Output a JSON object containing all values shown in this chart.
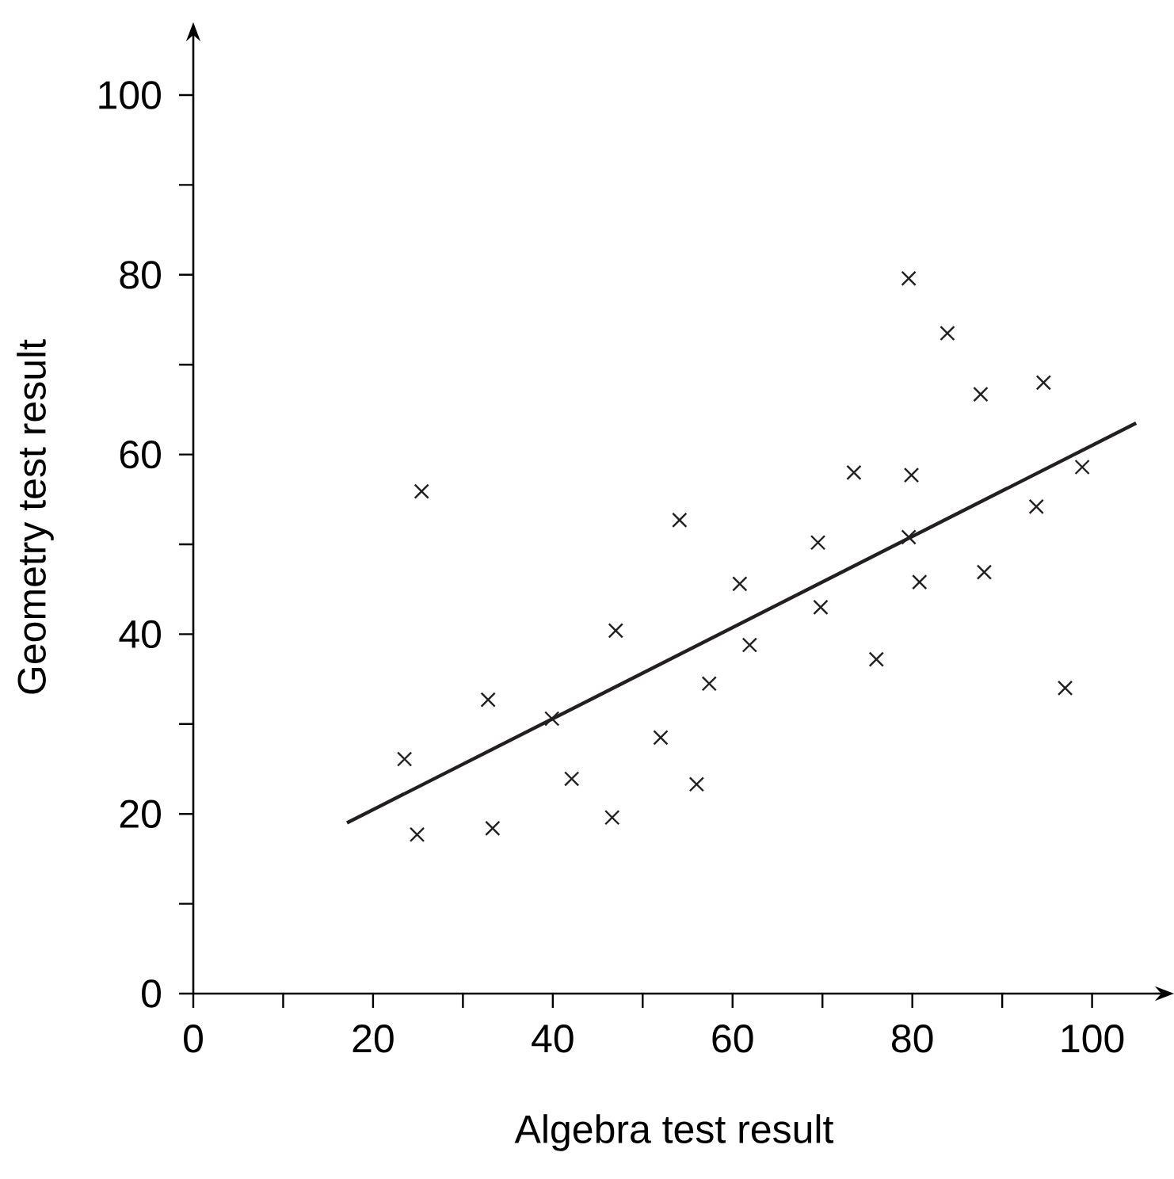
{
  "chart_data": {
    "type": "scatter",
    "xlabel": "Algebra test result",
    "ylabel": "Geometry test result",
    "xlim": [
      0,
      107
    ],
    "ylim": [
      0,
      106
    ],
    "xticks": [
      0,
      {
        "value": 10,
        "label": null
      },
      20,
      {
        "value": 30,
        "label": null
      },
      40,
      {
        "value": 50,
        "label": null
      },
      60,
      {
        "value": 70,
        "label": null
      },
      80,
      {
        "value": 90,
        "label": null
      },
      100
    ],
    "yticks": [
      0,
      {
        "value": 10,
        "label": null
      },
      20,
      {
        "value": 30,
        "label": null
      },
      40,
      {
        "value": 50,
        "label": null
      },
      60,
      {
        "value": 70,
        "label": null
      },
      80,
      {
        "value": 90,
        "label": null
      },
      100
    ],
    "marker": "cross",
    "series": [
      {
        "color": "#231f20",
        "x": [
          23.5,
          24.9,
          25.4,
          32.8,
          33.3,
          39.9,
          42.1,
          46.6,
          47.0,
          52.0,
          54.1,
          56.0,
          57.4,
          60.8,
          61.9,
          69.5,
          69.8,
          73.5,
          76.0,
          79.6,
          79.6,
          79.9,
          80.8,
          83.9,
          87.6,
          88.0,
          93.8,
          94.6,
          97.0,
          98.9
        ],
        "values": [
          26.1,
          17.7,
          55.9,
          32.7,
          18.4,
          30.6,
          23.9,
          19.6,
          40.4,
          28.5,
          52.7,
          23.3,
          34.5,
          45.6,
          38.8,
          50.2,
          43.0,
          58.0,
          37.2,
          79.6,
          50.8,
          57.7,
          45.8,
          73.5,
          66.7,
          46.9,
          54.2,
          68.0,
          34.0,
          58.6
        ]
      },
      {
        "type": "line",
        "color": "#231f20",
        "marker": "none",
        "x": [
          17.1,
          104.9
        ],
        "values": [
          19.0,
          63.5
        ]
      }
    ]
  }
}
